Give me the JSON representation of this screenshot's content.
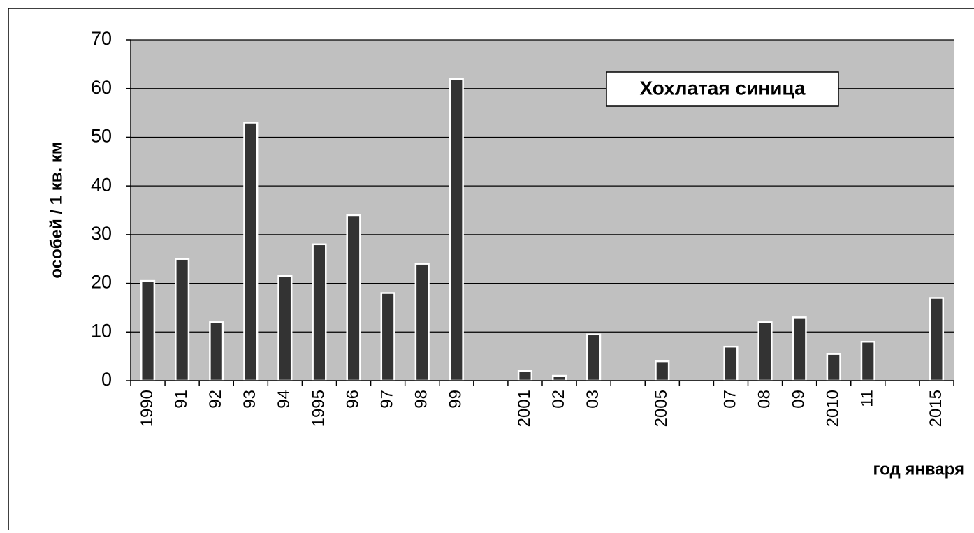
{
  "chart_data": {
    "type": "bar",
    "title": "Хохлатая синица",
    "y_label": "особей / 1 кв. км",
    "x_label": "год января",
    "categories": [
      "1990",
      "91",
      "92",
      "93",
      "94",
      "1995",
      "96",
      "97",
      "98",
      "99",
      null,
      "2001",
      "02",
      "03",
      null,
      "2005",
      null,
      "07",
      "08",
      "09",
      "2010",
      "11",
      null,
      "2015"
    ],
    "values": [
      20.5,
      25,
      12,
      53,
      21.5,
      28,
      34,
      18,
      24,
      62,
      null,
      2,
      1,
      9.5,
      null,
      4,
      null,
      7,
      12,
      13,
      5.5,
      8,
      null,
      17
    ],
    "color": "#333333",
    "ylim": [
      0,
      70
    ],
    "yticks": [
      0,
      10,
      20,
      30,
      40,
      50,
      60,
      70
    ],
    "grid": true
  }
}
